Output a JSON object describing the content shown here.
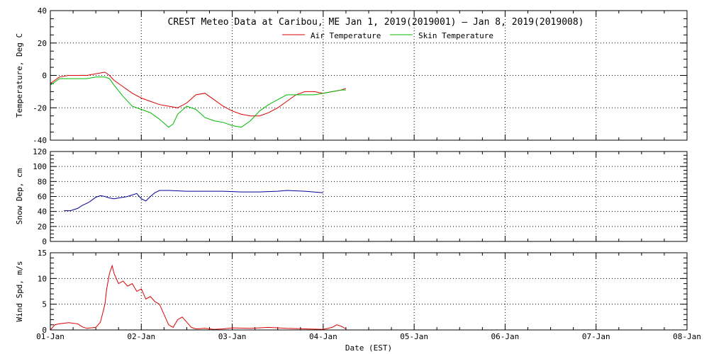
{
  "title": "CREST Meteo Data at Caribou, ME   Jan  1, 2019(2019001) — Jan  8, 2019(2019008)",
  "xlabel": "Date (EST)",
  "x_tick_labels": [
    "01-Jan",
    "02-Jan",
    "03-Jan",
    "04-Jan",
    "05-Jan",
    "06-Jan",
    "07-Jan",
    "08-Jan"
  ],
  "colors": {
    "air": "#dd0000",
    "skin": "#00bb00",
    "snow": "#000099",
    "wind": "#dd0000"
  },
  "chart_data": [
    {
      "type": "line",
      "ylabel": "Temperature, Deg C",
      "xlim": [
        0,
        7
      ],
      "ylim": [
        -40,
        40
      ],
      "y_ticks": [
        -40,
        -20,
        0,
        20,
        40
      ],
      "grid": true,
      "legend_position": "top-center",
      "series": [
        {
          "name": "Air Temperature",
          "x": [
            0.0,
            0.1,
            0.2,
            0.3,
            0.4,
            0.5,
            0.6,
            0.65,
            0.7,
            0.8,
            0.9,
            1.0,
            1.1,
            1.2,
            1.3,
            1.4,
            1.5,
            1.6,
            1.7,
            1.8,
            1.9,
            2.0,
            2.1,
            2.2,
            2.3,
            2.4,
            2.5,
            2.6,
            2.7,
            2.8,
            2.9,
            3.0,
            3.1,
            3.2,
            3.25
          ],
          "y": [
            -5,
            -1,
            0,
            0,
            0,
            1,
            2,
            0,
            -3,
            -7,
            -11,
            -14,
            -16,
            -18,
            -19,
            -20,
            -17,
            -12,
            -11,
            -15,
            -19,
            -22,
            -24,
            -25,
            -25,
            -23,
            -20,
            -16,
            -12,
            -10,
            -10,
            -11,
            -10,
            -9,
            -8
          ]
        },
        {
          "name": "Skin Temperature",
          "x": [
            0.0,
            0.1,
            0.2,
            0.3,
            0.4,
            0.5,
            0.6,
            0.65,
            0.7,
            0.8,
            0.9,
            1.0,
            1.1,
            1.2,
            1.3,
            1.35,
            1.4,
            1.5,
            1.6,
            1.7,
            1.8,
            1.9,
            2.0,
            2.1,
            2.2,
            2.3,
            2.4,
            2.5,
            2.6,
            2.7,
            2.8,
            2.9,
            3.0,
            3.1,
            3.2,
            3.25
          ],
          "y": [
            -6,
            -2,
            -2,
            -2,
            -2,
            -1,
            -1,
            -2,
            -6,
            -13,
            -19,
            -21,
            -23,
            -27,
            -32,
            -30,
            -24,
            -19,
            -21,
            -26,
            -28,
            -29,
            -31,
            -32,
            -28,
            -22,
            -18,
            -15,
            -12,
            -12,
            -12,
            -12,
            -11,
            -10,
            -9,
            -9
          ]
        }
      ]
    },
    {
      "type": "line",
      "ylabel": "Snow Dep, cm",
      "xlim": [
        0,
        7
      ],
      "ylim": [
        0,
        120
      ],
      "y_ticks": [
        0,
        20,
        40,
        60,
        80,
        100,
        120
      ],
      "grid": true,
      "series": [
        {
          "name": "Snow Depth",
          "x": [
            0.15,
            0.22,
            0.3,
            0.35,
            0.42,
            0.5,
            0.55,
            0.6,
            0.65,
            0.7,
            0.75,
            0.8,
            0.85,
            0.9,
            0.95,
            1.0,
            1.05,
            1.1,
            1.15,
            1.2,
            1.3,
            1.5,
            1.7,
            1.9,
            2.1,
            2.3,
            2.5,
            2.6,
            2.8,
            3.0
          ],
          "y": [
            41,
            41,
            44,
            48,
            52,
            59,
            61,
            60,
            58,
            57,
            58,
            59,
            60,
            62,
            64,
            57,
            54,
            60,
            65,
            68,
            68,
            67,
            67,
            67,
            66,
            66,
            67,
            68,
            67,
            65
          ]
        }
      ]
    },
    {
      "type": "line",
      "ylabel": "Wind Spd, m/s",
      "xlim": [
        0,
        7
      ],
      "ylim": [
        0,
        15
      ],
      "y_ticks": [
        0,
        5,
        10,
        15
      ],
      "grid": true,
      "series": [
        {
          "name": "Wind Speed",
          "x": [
            0.0,
            0.05,
            0.1,
            0.2,
            0.3,
            0.35,
            0.4,
            0.5,
            0.55,
            0.6,
            0.62,
            0.65,
            0.68,
            0.7,
            0.75,
            0.8,
            0.85,
            0.9,
            0.95,
            1.0,
            1.05,
            1.1,
            1.15,
            1.2,
            1.25,
            1.3,
            1.35,
            1.4,
            1.45,
            1.5,
            1.55,
            1.6,
            1.7,
            1.8,
            1.9,
            2.0,
            2.2,
            2.4,
            2.6,
            2.8,
            3.0,
            3.1,
            3.15,
            3.2,
            3.25
          ],
          "y": [
            0,
            1.0,
            1.2,
            1.4,
            1.2,
            0.6,
            0.3,
            0.5,
            1.5,
            5.0,
            8.0,
            11.0,
            12.5,
            11.0,
            9.0,
            9.5,
            8.5,
            9.0,
            7.5,
            8.0,
            6.0,
            6.5,
            5.5,
            5.0,
            3.0,
            1.0,
            0.5,
            2.0,
            2.5,
            1.5,
            0.5,
            0.2,
            0.3,
            0.1,
            0.2,
            0.4,
            0.3,
            0.5,
            0.3,
            0.2,
            0.1,
            0.5,
            1.0,
            0.7,
            0.2
          ]
        }
      ]
    }
  ]
}
